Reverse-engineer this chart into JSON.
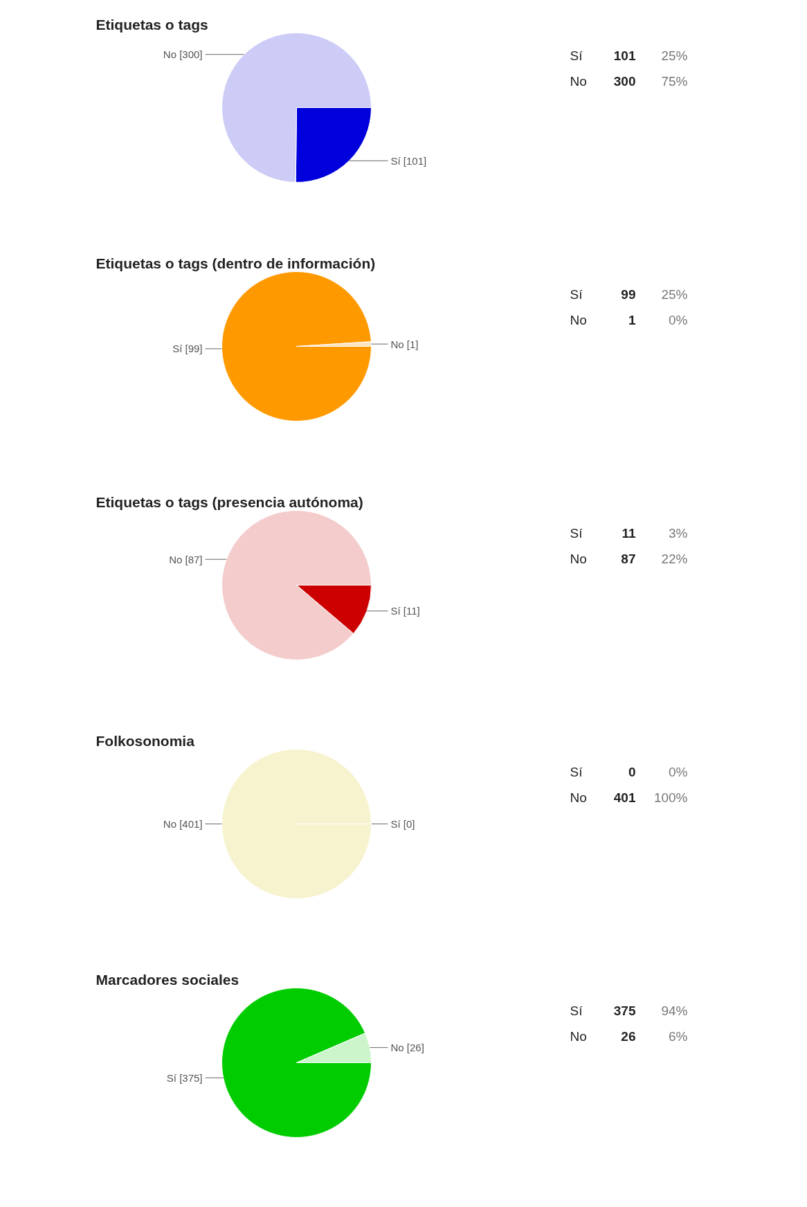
{
  "chart_data": [
    {
      "type": "pie",
      "title": "Etiquetas o tags",
      "categories": [
        "Sí [101]",
        "No [300]"
      ],
      "values": [
        101,
        300
      ],
      "colors": [
        "#0000dd",
        "#ccccf7"
      ],
      "annotations": [
        "Sí",
        "101",
        "25%",
        "No",
        "300",
        "75%"
      ]
    },
    {
      "type": "pie",
      "title": "Etiquetas o tags (dentro de información)",
      "categories": [
        "Sí [99]",
        "No [1]"
      ],
      "values": [
        99,
        1
      ],
      "colors": [
        "#ff9900",
        "#fde3bd"
      ],
      "annotations": [
        "Sí",
        "99",
        "25%",
        "No",
        "1",
        "0%"
      ]
    },
    {
      "type": "pie",
      "title": "Etiquetas o tags (presencia autónoma)",
      "categories": [
        "Sí [11]",
        "No [87]"
      ],
      "values": [
        11,
        87
      ],
      "colors": [
        "#cc0000",
        "#f4cccc"
      ],
      "annotations": [
        "Sí",
        "11",
        "3%",
        "No",
        "87",
        "22%"
      ]
    },
    {
      "type": "pie",
      "title": "Folkosonomia",
      "categories": [
        "Sí [0]",
        "No [401]"
      ],
      "values": [
        0,
        401
      ],
      "colors": [
        "#eee8aa",
        "#f7f3cf"
      ],
      "annotations": [
        "Sí",
        "0",
        "0%",
        "No",
        "401",
        "100%"
      ]
    },
    {
      "type": "pie",
      "title": "Marcadores sociales",
      "categories": [
        "Sí [375]",
        "No [26]"
      ],
      "values": [
        375,
        26
      ],
      "colors": [
        "#00cc00",
        "#ccf5cc"
      ],
      "annotations": [
        "Sí",
        "375",
        "94%",
        "No",
        "26",
        "6%"
      ]
    }
  ]
}
